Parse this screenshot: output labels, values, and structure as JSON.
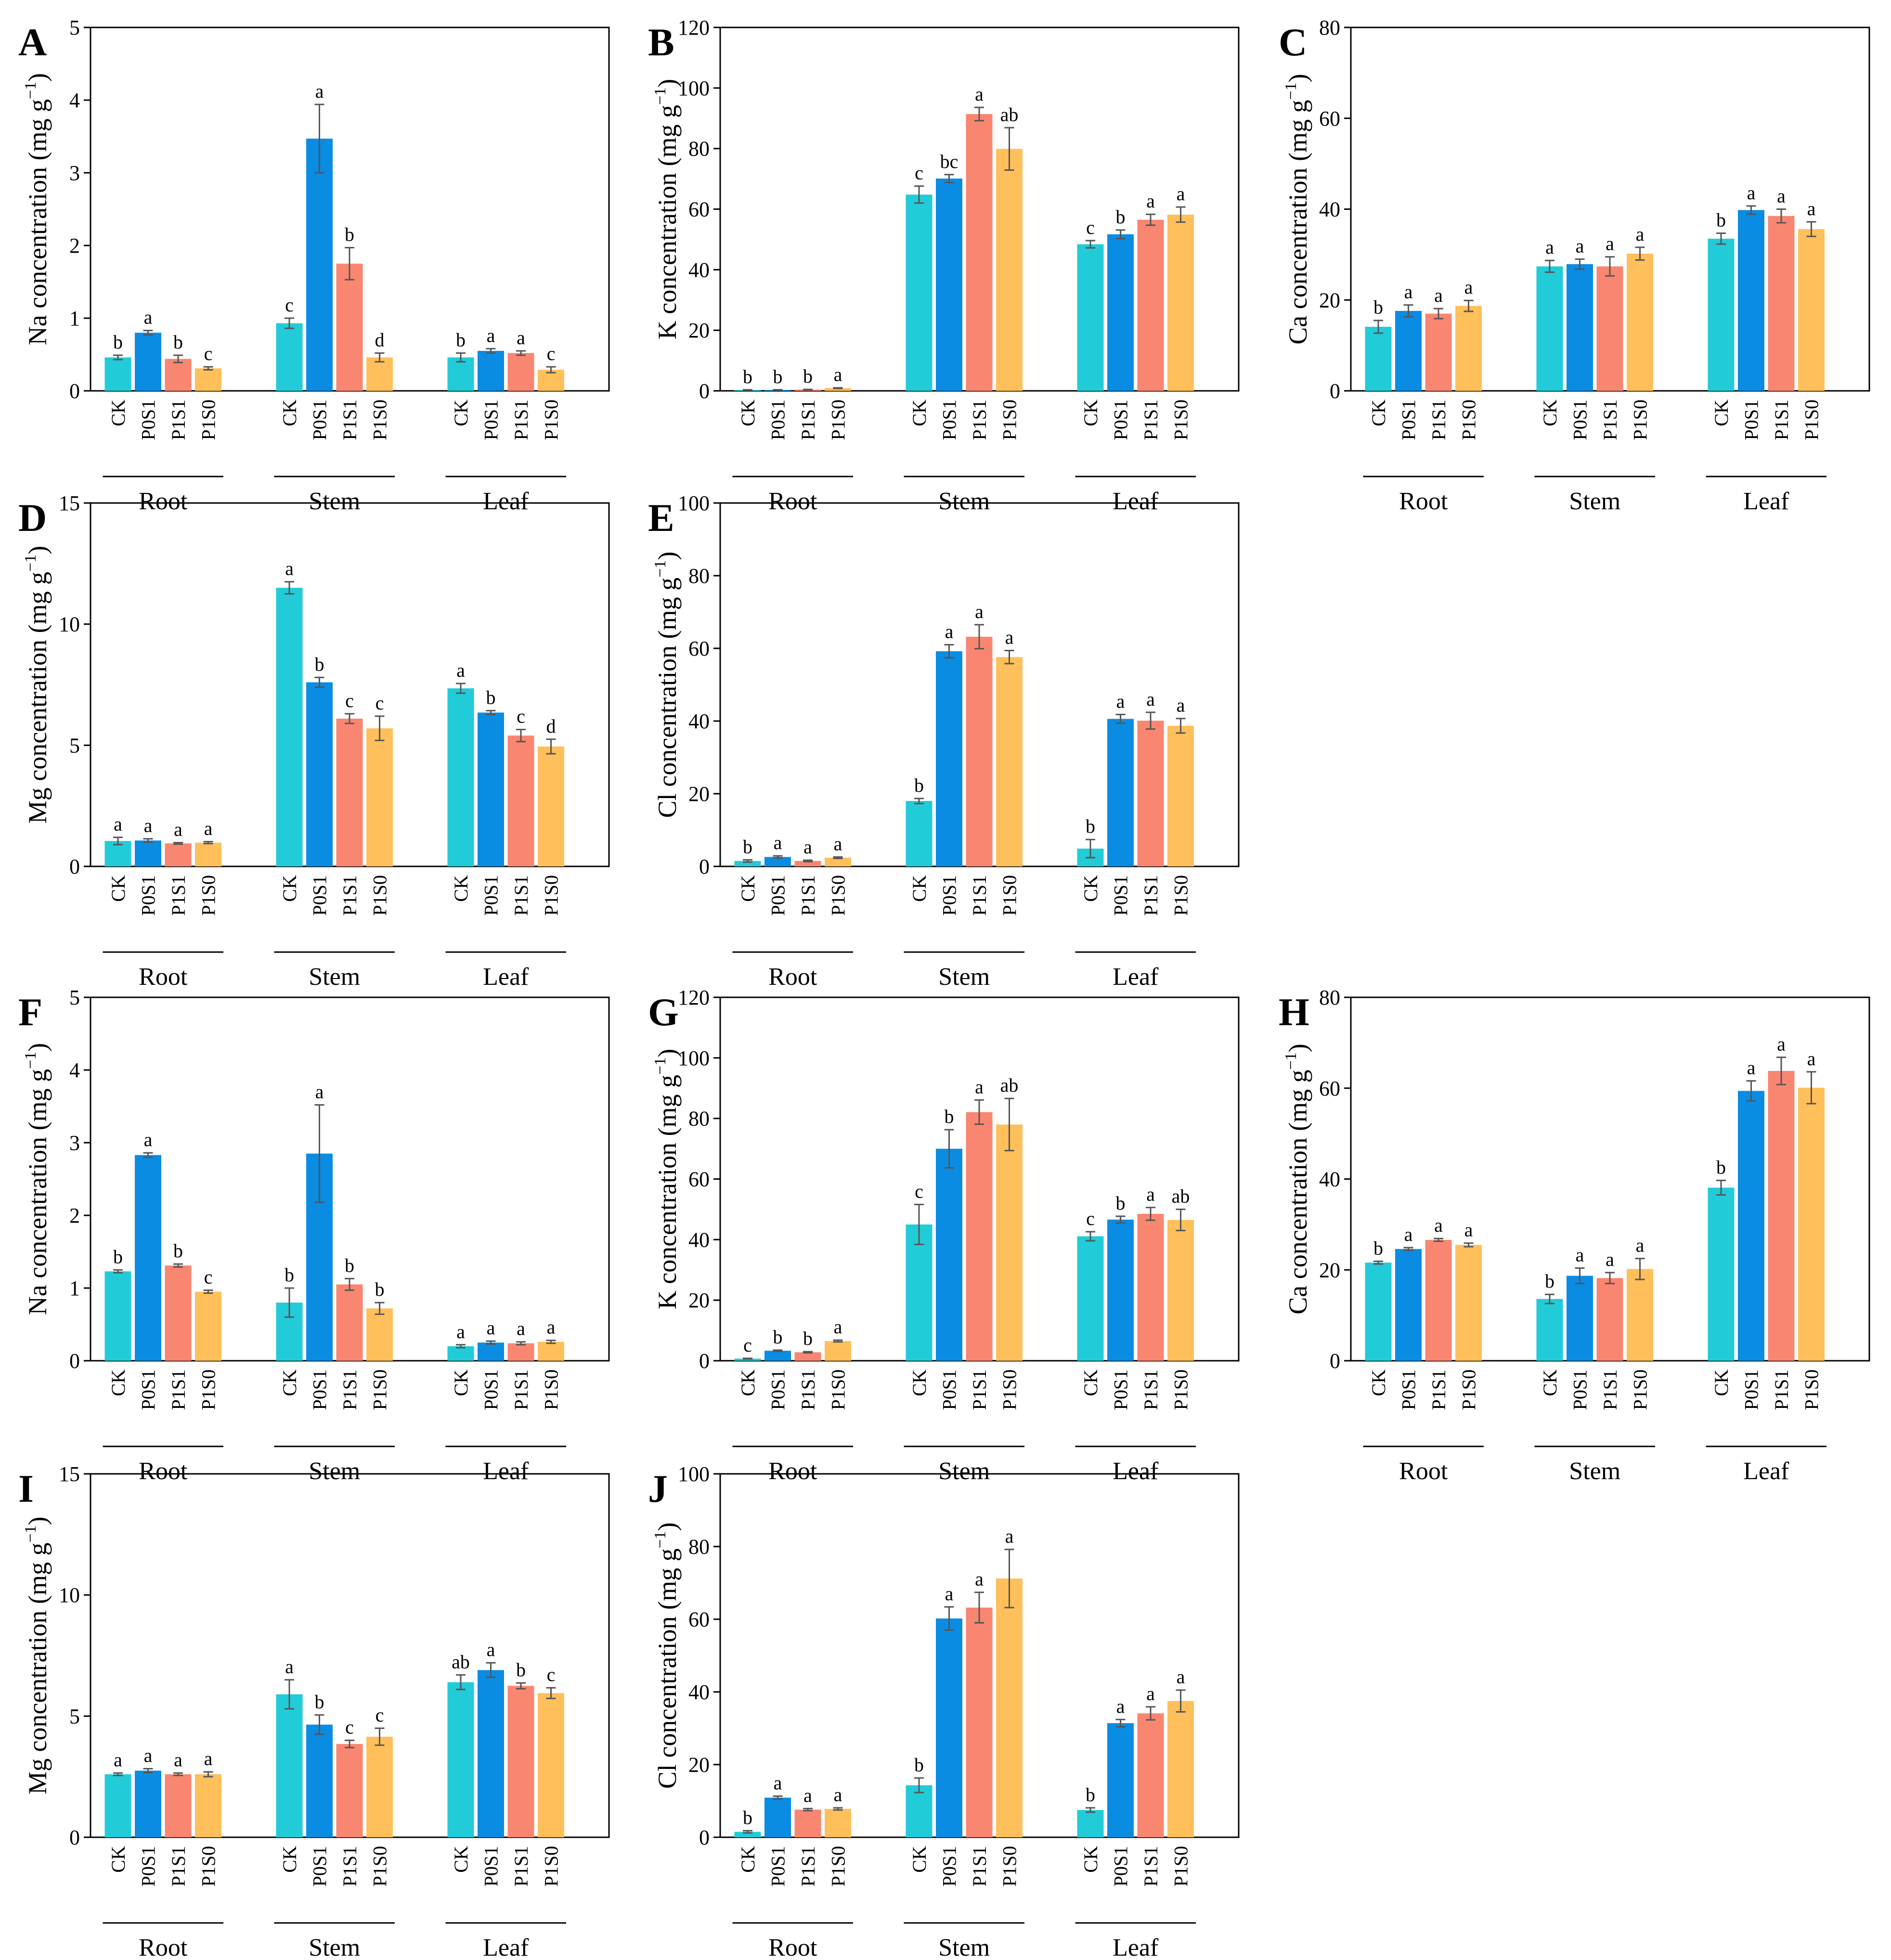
{
  "colors": {
    "CK": "#22cbd8",
    "P0S1": "#0b8ce3",
    "P1S1": "#f98670",
    "P1S0": "#ffbf5a",
    "axis": "#000000",
    "error": "#555555"
  },
  "treatments": [
    "CK",
    "P0S1",
    "P1S1",
    "P1S0"
  ],
  "tissues": [
    "Root",
    "Stem",
    "Leaf"
  ],
  "chart_data": [
    {
      "type": "bar",
      "panel": "A",
      "element": "Na",
      "ylabel": "Na concentration (mg g",
      "ylabel_sup": "−1",
      "ylabel_end": ")",
      "ylim": [
        0,
        5
      ],
      "yticks": [
        0,
        1,
        2,
        3,
        4,
        5
      ],
      "groups": [
        "Root",
        "Stem",
        "Leaf"
      ],
      "series": [
        {
          "name": "CK",
          "values": [
            0.46,
            0.93,
            0.46
          ],
          "errors": [
            0.03,
            0.07,
            0.06
          ],
          "letters": [
            "b",
            "c",
            "b"
          ]
        },
        {
          "name": "P0S1",
          "values": [
            0.8,
            3.47,
            0.55
          ],
          "errors": [
            0.03,
            0.47,
            0.03
          ],
          "letters": [
            "a",
            "a",
            "a"
          ]
        },
        {
          "name": "P1S1",
          "values": [
            0.44,
            1.75,
            0.52
          ],
          "errors": [
            0.05,
            0.22,
            0.03
          ],
          "letters": [
            "b",
            "b",
            "a"
          ]
        },
        {
          "name": "P1S0",
          "values": [
            0.31,
            0.46,
            0.29
          ],
          "errors": [
            0.02,
            0.06,
            0.04
          ],
          "letters": [
            "c",
            "d",
            "c"
          ]
        }
      ]
    },
    {
      "type": "bar",
      "panel": "B",
      "element": "K",
      "ylabel": "K concentration (mg g",
      "ylabel_sup": "−1",
      "ylabel_end": ")",
      "ylim": [
        0,
        120
      ],
      "yticks": [
        0,
        20,
        40,
        60,
        80,
        100,
        120
      ],
      "groups": [
        "Root",
        "Stem",
        "Leaf"
      ],
      "series": [
        {
          "name": "CK",
          "values": [
            0.3,
            64.8,
            48.4
          ],
          "errors": [
            0.05,
            2.8,
            1.2
          ],
          "letters": [
            "b",
            "c",
            "c"
          ]
        },
        {
          "name": "P0S1",
          "values": [
            0.3,
            70.1,
            51.7
          ],
          "errors": [
            0.05,
            1.3,
            1.4
          ],
          "letters": [
            "b",
            "bc",
            "b"
          ]
        },
        {
          "name": "P1S1",
          "values": [
            0.4,
            91.4,
            56.5
          ],
          "errors": [
            0.05,
            2.2,
            1.8
          ],
          "letters": [
            "b",
            "a",
            "a"
          ]
        },
        {
          "name": "P1S0",
          "values": [
            0.9,
            79.9,
            58.2
          ],
          "errors": [
            0.1,
            7.0,
            2.5
          ],
          "letters": [
            "a",
            "ab",
            "a"
          ]
        }
      ]
    },
    {
      "type": "bar",
      "panel": "C",
      "element": "Ca",
      "ylabel": "Ca concentration (mg g",
      "ylabel_sup": "−1",
      "ylabel_end": ")",
      "ylim": [
        0,
        80
      ],
      "yticks": [
        0,
        20,
        40,
        60,
        80
      ],
      "groups": [
        "Root",
        "Stem",
        "Leaf"
      ],
      "series": [
        {
          "name": "CK",
          "values": [
            14.1,
            27.4,
            33.5
          ],
          "errors": [
            1.4,
            1.3,
            1.2
          ],
          "letters": [
            "b",
            "a",
            "b"
          ]
        },
        {
          "name": "P0S1",
          "values": [
            17.6,
            27.9,
            39.8
          ],
          "errors": [
            1.3,
            1.1,
            0.9
          ],
          "letters": [
            "a",
            "a",
            "a"
          ]
        },
        {
          "name": "P1S1",
          "values": [
            17.0,
            27.4,
            38.5
          ],
          "errors": [
            1.1,
            2.1,
            1.5
          ],
          "letters": [
            "a",
            "a",
            "a"
          ]
        },
        {
          "name": "P1S0",
          "values": [
            18.7,
            30.2,
            35.6
          ],
          "errors": [
            1.2,
            1.4,
            1.6
          ],
          "letters": [
            "a",
            "a",
            "a"
          ]
        }
      ]
    },
    {
      "type": "bar",
      "panel": "D",
      "element": "Mg",
      "ylabel": "Mg concentration (mg g",
      "ylabel_sup": "−1",
      "ylabel_end": ")",
      "ylim": [
        0,
        15
      ],
      "yticks": [
        0,
        5,
        10,
        15
      ],
      "groups": [
        "Root",
        "Stem",
        "Leaf"
      ],
      "series": [
        {
          "name": "CK",
          "values": [
            1.05,
            11.5,
            7.35
          ],
          "errors": [
            0.15,
            0.25,
            0.2
          ],
          "letters": [
            "a",
            "a",
            "a"
          ]
        },
        {
          "name": "P0S1",
          "values": [
            1.07,
            7.6,
            6.35
          ],
          "errors": [
            0.07,
            0.2,
            0.08
          ],
          "letters": [
            "a",
            "b",
            "b"
          ]
        },
        {
          "name": "P1S1",
          "values": [
            0.95,
            6.1,
            5.4
          ],
          "errors": [
            0.03,
            0.2,
            0.25
          ],
          "letters": [
            "a",
            "c",
            "c"
          ]
        },
        {
          "name": "P1S0",
          "values": [
            0.98,
            5.7,
            4.95
          ],
          "errors": [
            0.04,
            0.5,
            0.3
          ],
          "letters": [
            "a",
            "c",
            "d"
          ]
        }
      ]
    },
    {
      "type": "bar",
      "panel": "E",
      "element": "Cl",
      "ylabel": "Cl concentration (mg g",
      "ylabel_sup": "−1",
      "ylabel_end": ")",
      "ylim": [
        0,
        100
      ],
      "yticks": [
        0,
        20,
        40,
        60,
        80,
        100
      ],
      "groups": [
        "Root",
        "Stem",
        "Leaf"
      ],
      "series": [
        {
          "name": "CK",
          "values": [
            1.5,
            18.0,
            4.9
          ],
          "errors": [
            0.3,
            0.7,
            2.5
          ],
          "letters": [
            "b",
            "b",
            "b"
          ]
        },
        {
          "name": "P0S1",
          "values": [
            2.6,
            59.2,
            40.6
          ],
          "errors": [
            0.3,
            1.8,
            1.2
          ],
          "letters": [
            "a",
            "a",
            "a"
          ]
        },
        {
          "name": "P1S1",
          "values": [
            1.5,
            63.2,
            40.1
          ],
          "errors": [
            0.2,
            3.3,
            2.3
          ],
          "letters": [
            "a",
            "a",
            "a"
          ]
        },
        {
          "name": "P1S0",
          "values": [
            2.4,
            57.6,
            38.7
          ],
          "errors": [
            0.2,
            1.8,
            2.0
          ],
          "letters": [
            "a",
            "a",
            "a"
          ]
        }
      ]
    },
    {
      "type": "bar",
      "panel": "F",
      "element": "Na",
      "ylabel": "Na concentration (mg g",
      "ylabel_sup": "−1",
      "ylabel_end": ")",
      "ylim": [
        0,
        5
      ],
      "yticks": [
        0,
        1,
        2,
        3,
        4,
        5
      ],
      "groups": [
        "Root",
        "Stem",
        "Leaf"
      ],
      "series": [
        {
          "name": "CK",
          "values": [
            1.23,
            0.8,
            0.2
          ],
          "errors": [
            0.02,
            0.2,
            0.02
          ],
          "letters": [
            "b",
            "b",
            "a"
          ]
        },
        {
          "name": "P0S1",
          "values": [
            2.83,
            2.85,
            0.25
          ],
          "errors": [
            0.03,
            0.67,
            0.02
          ],
          "letters": [
            "a",
            "a",
            "a"
          ]
        },
        {
          "name": "P1S1",
          "values": [
            1.31,
            1.05,
            0.24
          ],
          "errors": [
            0.02,
            0.08,
            0.02
          ],
          "letters": [
            "b",
            "b",
            "a"
          ]
        },
        {
          "name": "P1S0",
          "values": [
            0.95,
            0.72,
            0.26
          ],
          "errors": [
            0.02,
            0.08,
            0.02
          ],
          "letters": [
            "c",
            "b",
            "a"
          ]
        }
      ]
    },
    {
      "type": "bar",
      "panel": "G",
      "element": "K",
      "ylabel": "K concentration (mg g",
      "ylabel_sup": "−1",
      "ylabel_end": ")",
      "ylim": [
        0,
        120
      ],
      "yticks": [
        0,
        20,
        40,
        60,
        80,
        100,
        120
      ],
      "groups": [
        "Root",
        "Stem",
        "Leaf"
      ],
      "series": [
        {
          "name": "CK",
          "values": [
            0.7,
            45.0,
            41.1
          ],
          "errors": [
            0.1,
            6.6,
            1.5
          ],
          "letters": [
            "c",
            "c",
            "c"
          ]
        },
        {
          "name": "P0S1",
          "values": [
            3.3,
            70.0,
            46.6
          ],
          "errors": [
            0.2,
            6.3,
            1.1
          ],
          "letters": [
            "b",
            "b",
            "b"
          ]
        },
        {
          "name": "P1S1",
          "values": [
            2.8,
            82.1,
            48.5
          ],
          "errors": [
            0.2,
            4.0,
            2.1
          ],
          "letters": [
            "b",
            "a",
            "a"
          ]
        },
        {
          "name": "P1S0",
          "values": [
            6.5,
            78.0,
            46.5
          ],
          "errors": [
            0.3,
            8.6,
            3.5
          ],
          "letters": [
            "a",
            "ab",
            "ab"
          ]
        }
      ]
    },
    {
      "type": "bar",
      "panel": "H",
      "element": "Ca",
      "ylabel": "Ca concentration (mg g",
      "ylabel_sup": "−1",
      "ylabel_end": ")",
      "ylim": [
        0,
        80
      ],
      "yticks": [
        0,
        20,
        40,
        60,
        80
      ],
      "groups": [
        "Root",
        "Stem",
        "Leaf"
      ],
      "series": [
        {
          "name": "CK",
          "values": [
            21.6,
            13.6,
            38.1
          ],
          "errors": [
            0.3,
            1.0,
            1.6
          ],
          "letters": [
            "b",
            "b",
            "b"
          ]
        },
        {
          "name": "P0S1",
          "values": [
            24.6,
            18.7,
            59.4
          ],
          "errors": [
            0.3,
            1.7,
            2.2
          ],
          "letters": [
            "a",
            "a",
            "a"
          ]
        },
        {
          "name": "P1S1",
          "values": [
            26.6,
            18.2,
            63.8
          ],
          "errors": [
            0.3,
            1.2,
            3.0
          ],
          "letters": [
            "a",
            "a",
            "a"
          ]
        },
        {
          "name": "P1S0",
          "values": [
            25.5,
            20.2,
            60.1
          ],
          "errors": [
            0.4,
            2.3,
            3.5
          ],
          "letters": [
            "a",
            "a",
            "a"
          ]
        }
      ]
    },
    {
      "type": "bar",
      "panel": "I",
      "element": "Mg",
      "ylabel": "Mg concentration (mg g",
      "ylabel_sup": "−1",
      "ylabel_end": ")",
      "ylim": [
        0,
        15
      ],
      "yticks": [
        0,
        5,
        10,
        15
      ],
      "groups": [
        "Root",
        "Stem",
        "Leaf"
      ],
      "series": [
        {
          "name": "CK",
          "values": [
            2.6,
            5.9,
            6.4
          ],
          "errors": [
            0.05,
            0.6,
            0.3
          ],
          "letters": [
            "a",
            "a",
            "ab"
          ]
        },
        {
          "name": "P0S1",
          "values": [
            2.75,
            4.65,
            6.9
          ],
          "errors": [
            0.08,
            0.4,
            0.3
          ],
          "letters": [
            "a",
            "b",
            "a"
          ]
        },
        {
          "name": "P1S1",
          "values": [
            2.6,
            3.85,
            6.25
          ],
          "errors": [
            0.05,
            0.15,
            0.12
          ],
          "letters": [
            "a",
            "c",
            "b"
          ]
        },
        {
          "name": "P1S0",
          "values": [
            2.6,
            4.15,
            5.95
          ],
          "errors": [
            0.1,
            0.35,
            0.22
          ],
          "letters": [
            "a",
            "c",
            "c"
          ]
        }
      ]
    },
    {
      "type": "bar",
      "panel": "J",
      "element": "Cl",
      "ylabel": "Cl concentration (mg g",
      "ylabel_sup": "−1",
      "ylabel_end": ")",
      "ylim": [
        0,
        100
      ],
      "yticks": [
        0,
        20,
        40,
        60,
        80,
        100
      ],
      "groups": [
        "Root",
        "Stem",
        "Leaf"
      ],
      "series": [
        {
          "name": "CK",
          "values": [
            1.5,
            14.3,
            7.5
          ],
          "errors": [
            0.3,
            2.0,
            0.6
          ],
          "letters": [
            "b",
            "b",
            "b"
          ]
        },
        {
          "name": "P0S1",
          "values": [
            10.9,
            60.2,
            31.4
          ],
          "errors": [
            0.4,
            3.2,
            1.0
          ],
          "letters": [
            "a",
            "a",
            "a"
          ]
        },
        {
          "name": "P1S1",
          "values": [
            7.6,
            63.2,
            34.1
          ],
          "errors": [
            0.3,
            4.2,
            1.8
          ],
          "letters": [
            "a",
            "a",
            "a"
          ]
        },
        {
          "name": "P1S0",
          "values": [
            7.8,
            71.2,
            37.5
          ],
          "errors": [
            0.3,
            8.0,
            3.0
          ],
          "letters": [
            "a",
            "a",
            "a"
          ]
        }
      ]
    }
  ]
}
